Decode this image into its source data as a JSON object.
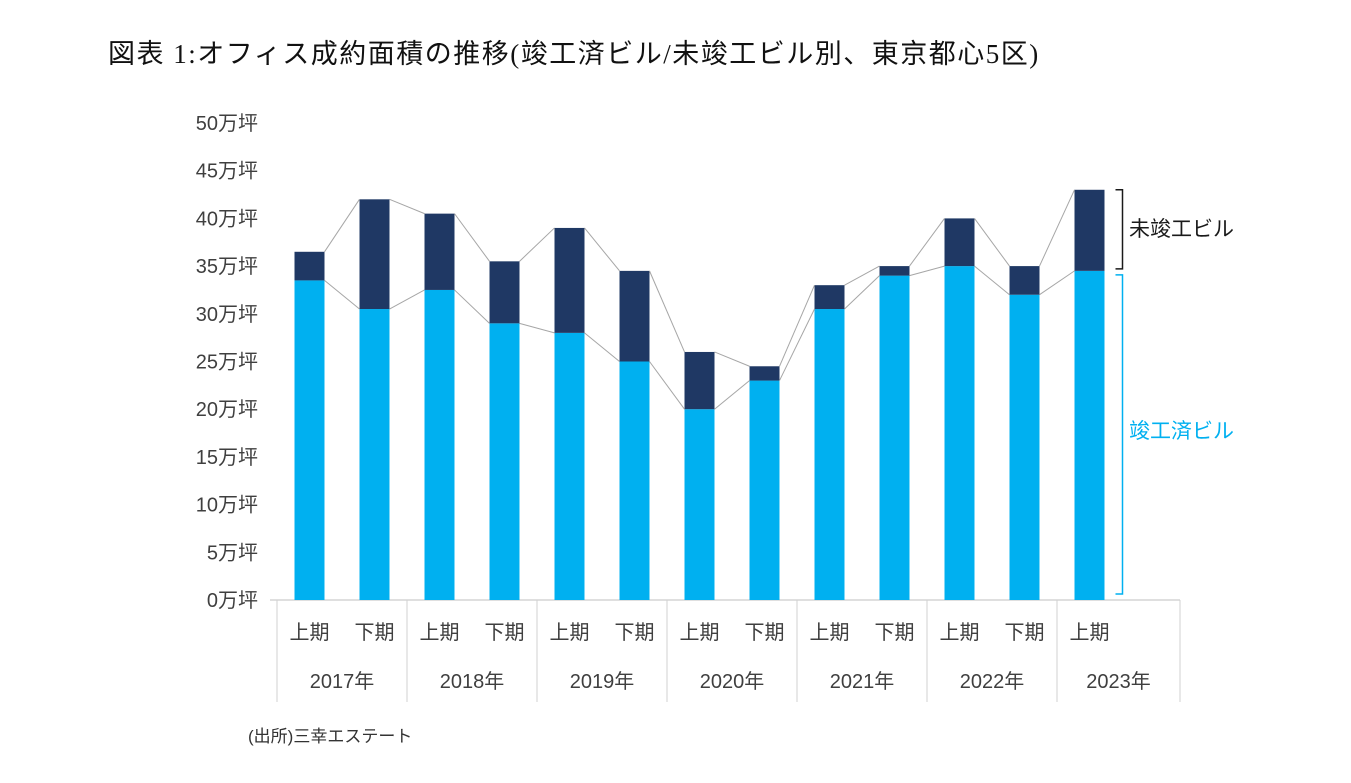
{
  "title": "図表 1:オフィス成約面積の推移(竣工済ビル/未竣工ビル別、東京都心5区)",
  "source": "(出所)三幸エステート",
  "annotations": {
    "uncompleted": "未竣工ビル",
    "completed": "竣工済ビル"
  },
  "colors": {
    "completed": "#00b0f0",
    "uncompleted": "#1f3864",
    "connector": "#a6a6a6",
    "axis": "#bfbfbf",
    "separator": "#d0d0d0",
    "text": "#3f3f3f",
    "annotation_dark": "#1a1a1a"
  },
  "chart_data": {
    "type": "bar",
    "stacked": true,
    "title": "図表 1:オフィス成約面積の推移(竣工済ビル/未竣工ビル別、東京都心5区)",
    "unit": "万坪",
    "ylim": [
      0,
      50
    ],
    "ytick_step": 5,
    "grid": false,
    "legend_position": "right-annotations",
    "yticks": [
      {
        "value": 0,
        "label": "0万坪"
      },
      {
        "value": 5,
        "label": "5万坪"
      },
      {
        "value": 10,
        "label": "10万坪"
      },
      {
        "value": 15,
        "label": "15万坪"
      },
      {
        "value": 20,
        "label": "20万坪"
      },
      {
        "value": 25,
        "label": "25万坪"
      },
      {
        "value": 30,
        "label": "30万坪"
      },
      {
        "value": 35,
        "label": "35万坪"
      },
      {
        "value": 40,
        "label": "40万坪"
      },
      {
        "value": 45,
        "label": "45万坪"
      },
      {
        "value": 50,
        "label": "50万坪"
      }
    ],
    "categories": [
      "上期",
      "下期",
      "上期",
      "下期",
      "上期",
      "下期",
      "上期",
      "下期",
      "上期",
      "下期",
      "上期",
      "下期",
      "上期"
    ],
    "year_groups": [
      {
        "label": "2017年",
        "count": 2
      },
      {
        "label": "2018年",
        "count": 2
      },
      {
        "label": "2019年",
        "count": 2
      },
      {
        "label": "2020年",
        "count": 2
      },
      {
        "label": "2021年",
        "count": 2
      },
      {
        "label": "2022年",
        "count": 2
      },
      {
        "label": "2023年",
        "count": 1
      }
    ],
    "series": [
      {
        "name": "竣工済ビル",
        "color": "#00b0f0",
        "values": [
          33.5,
          30.5,
          32.5,
          29,
          28,
          25,
          20,
          23,
          30.5,
          34,
          35,
          32,
          34.5
        ]
      },
      {
        "name": "未竣工ビル",
        "color": "#1f3864",
        "values": [
          3,
          11.5,
          8,
          6.5,
          11,
          9.5,
          6,
          1.5,
          2.5,
          1,
          5,
          3,
          8.5
        ]
      }
    ],
    "totals": [
      36.5,
      42,
      40.5,
      35.5,
      39,
      34.5,
      26,
      24.5,
      33,
      35,
      40,
      35,
      43
    ]
  }
}
